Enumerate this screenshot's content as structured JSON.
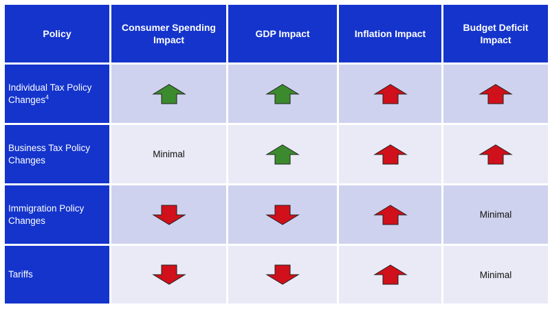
{
  "table": {
    "headers": [
      "Policy",
      "Consumer Spending Impact",
      "GDP Impact",
      "Inflation Impact",
      "Budget Deficit Impact"
    ],
    "rows": [
      {
        "policy": "Individual Tax Policy Changes",
        "footnote": "4",
        "cells": [
          "up",
          "up",
          "up",
          "up"
        ]
      },
      {
        "policy": "Business Tax Policy Changes",
        "footnote": "",
        "cells": [
          "Minimal",
          "up",
          "up",
          "up"
        ]
      },
      {
        "policy": "Immigration Policy Changes",
        "footnote": "",
        "cells": [
          "down",
          "down",
          "up",
          "Minimal"
        ]
      },
      {
        "policy": "Tariffs",
        "footnote": "",
        "cells": [
          "down",
          "down",
          "up",
          "Minimal"
        ]
      }
    ],
    "cell_colors": [
      [
        "#3c8a2e",
        "#3c8a2e",
        "#d0101a",
        "#d0101a"
      ],
      [
        "",
        "#3c8a2e",
        "#d0101a",
        "#d0101a"
      ],
      [
        "#d0101a",
        "#d0101a",
        "#d0101a",
        ""
      ],
      [
        "#d0101a",
        "#d0101a",
        "#d0101a",
        ""
      ]
    ],
    "colors": {
      "header_bg": "#1434cc",
      "row_odd_bg": "#cfd2ee",
      "row_even_bg": "#e9eaf6",
      "up_green": "#3c8a2e",
      "arrow_red": "#d0101a"
    },
    "icons": {
      "up": "arrow-up-icon",
      "down": "arrow-down-icon"
    }
  }
}
